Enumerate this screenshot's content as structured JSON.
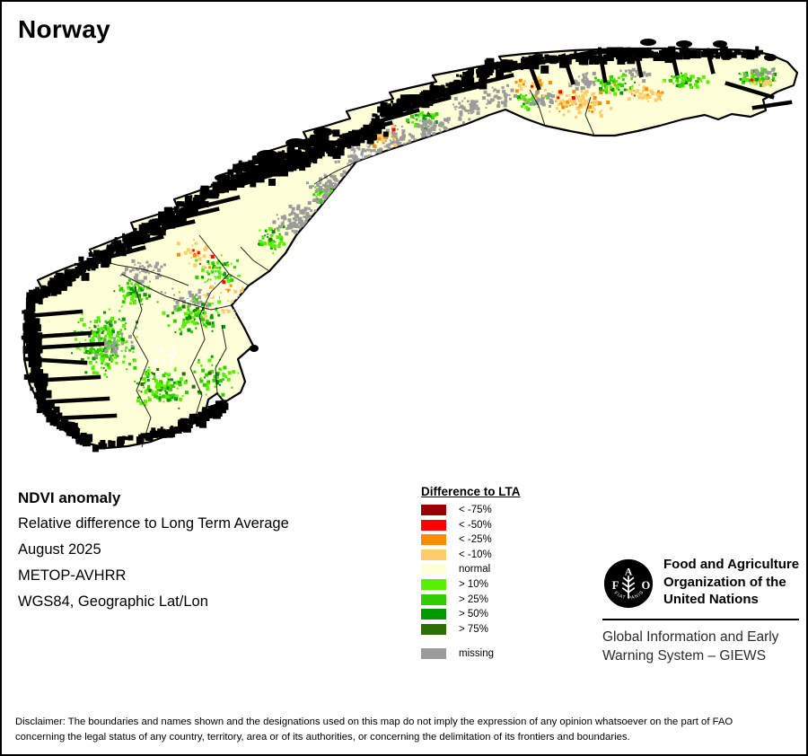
{
  "title": "Norway",
  "info_block": {
    "heading": "NDVI anomaly",
    "lines": [
      "Relative difference to Long Term Average",
      "August 2025",
      "METOP-AVHRR",
      "WGS84, Geographic Lat/Lon"
    ]
  },
  "legend": {
    "title": "Difference to LTA",
    "items": [
      {
        "key": "lt75",
        "label": "< -75%",
        "color": "#990000",
        "separated": false
      },
      {
        "key": "lt50",
        "label": "< -50%",
        "color": "#ff0000",
        "separated": false
      },
      {
        "key": "lt25",
        "label": "< -25%",
        "color": "#ff8c00",
        "separated": false
      },
      {
        "key": "lt10",
        "label": "< -10%",
        "color": "#ffcc6b",
        "separated": false
      },
      {
        "key": "normal",
        "label": "normal",
        "color": "#ffffd8",
        "separated": false
      },
      {
        "key": "gt10",
        "label": "> 10%",
        "color": "#57f000",
        "separated": false
      },
      {
        "key": "gt25",
        "label": "> 25%",
        "color": "#33cc00",
        "separated": false
      },
      {
        "key": "gt50",
        "label": "> 50%",
        "color": "#009a00",
        "separated": false
      },
      {
        "key": "gt75",
        "label": "> 75%",
        "color": "#2b6f00",
        "separated": false
      },
      {
        "key": "missing",
        "label": "missing",
        "color": "#9b9b9b",
        "separated": true
      }
    ]
  },
  "map": {
    "land_color": "#ffffd8",
    "coast_color": "#000000",
    "border_color": "#000000"
  },
  "fao_block": {
    "org_lines": [
      "Food and Agriculture",
      "Organization of the",
      "United Nations"
    ],
    "program_lines": [
      "Global Information and Early",
      "Warning System – GIEWS"
    ],
    "logo_letters": [
      "F",
      "A",
      "O"
    ],
    "logo_motto": "FIAT PANIS"
  },
  "disclaimer": {
    "lines": [
      "Disclaimer: The boundaries and names shown and the designations used on this map do not imply the expression of any opinion whatsoever on the part of FAO",
      "concerning the legal status of any country, territory, area or of its authorities, or concerning the delimitation of its frontiers and boundaries."
    ]
  }
}
